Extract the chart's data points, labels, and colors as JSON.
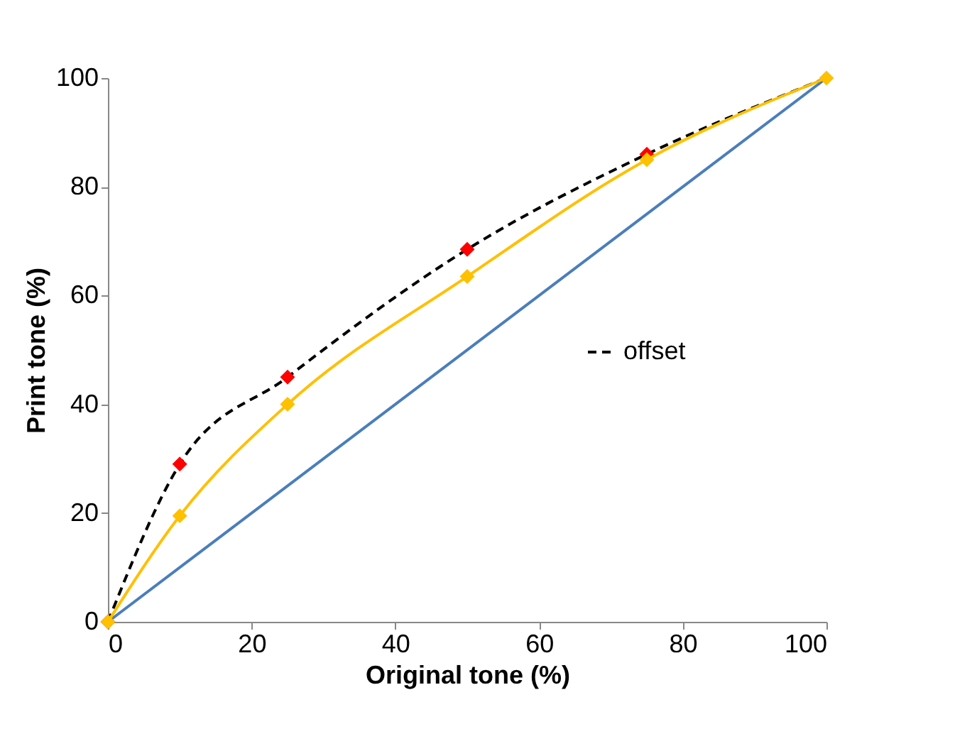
{
  "chart_data": {
    "type": "line",
    "xlabel": "Original tone (%)",
    "ylabel": "Print tone (%)",
    "xlim": [
      0,
      100
    ],
    "xticks": [
      0,
      20,
      40,
      60,
      80,
      100
    ],
    "ylim": [
      0,
      100
    ],
    "yticks": [
      0,
      20,
      40,
      60,
      80,
      100
    ],
    "grid": false,
    "legend": "right",
    "series": [
      {
        "x": [
          0,
          100
        ],
        "values": [
          0,
          100
        ],
        "color": "#4a7ebb",
        "marker": "none",
        "line_style": "solid"
      },
      {
        "name": "offset",
        "x": [
          0,
          10,
          25,
          50,
          75,
          100
        ],
        "values": [
          0,
          29,
          45,
          68.5,
          86,
          100
        ],
        "color": "#000000",
        "marker": "none",
        "line_style": "dashed"
      },
      {
        "type": "scatter",
        "x": [
          0,
          10,
          25,
          50,
          75
        ],
        "values": [
          0,
          29,
          45,
          68.5,
          86
        ],
        "color": "#ff0000",
        "marker": "diamond"
      },
      {
        "x": [
          0,
          10,
          25,
          50,
          75,
          100
        ],
        "values": [
          0,
          19.5,
          40,
          63.5,
          85,
          100
        ],
        "color": "#ffc000",
        "marker": "diamond",
        "line_style": "solid"
      }
    ]
  }
}
